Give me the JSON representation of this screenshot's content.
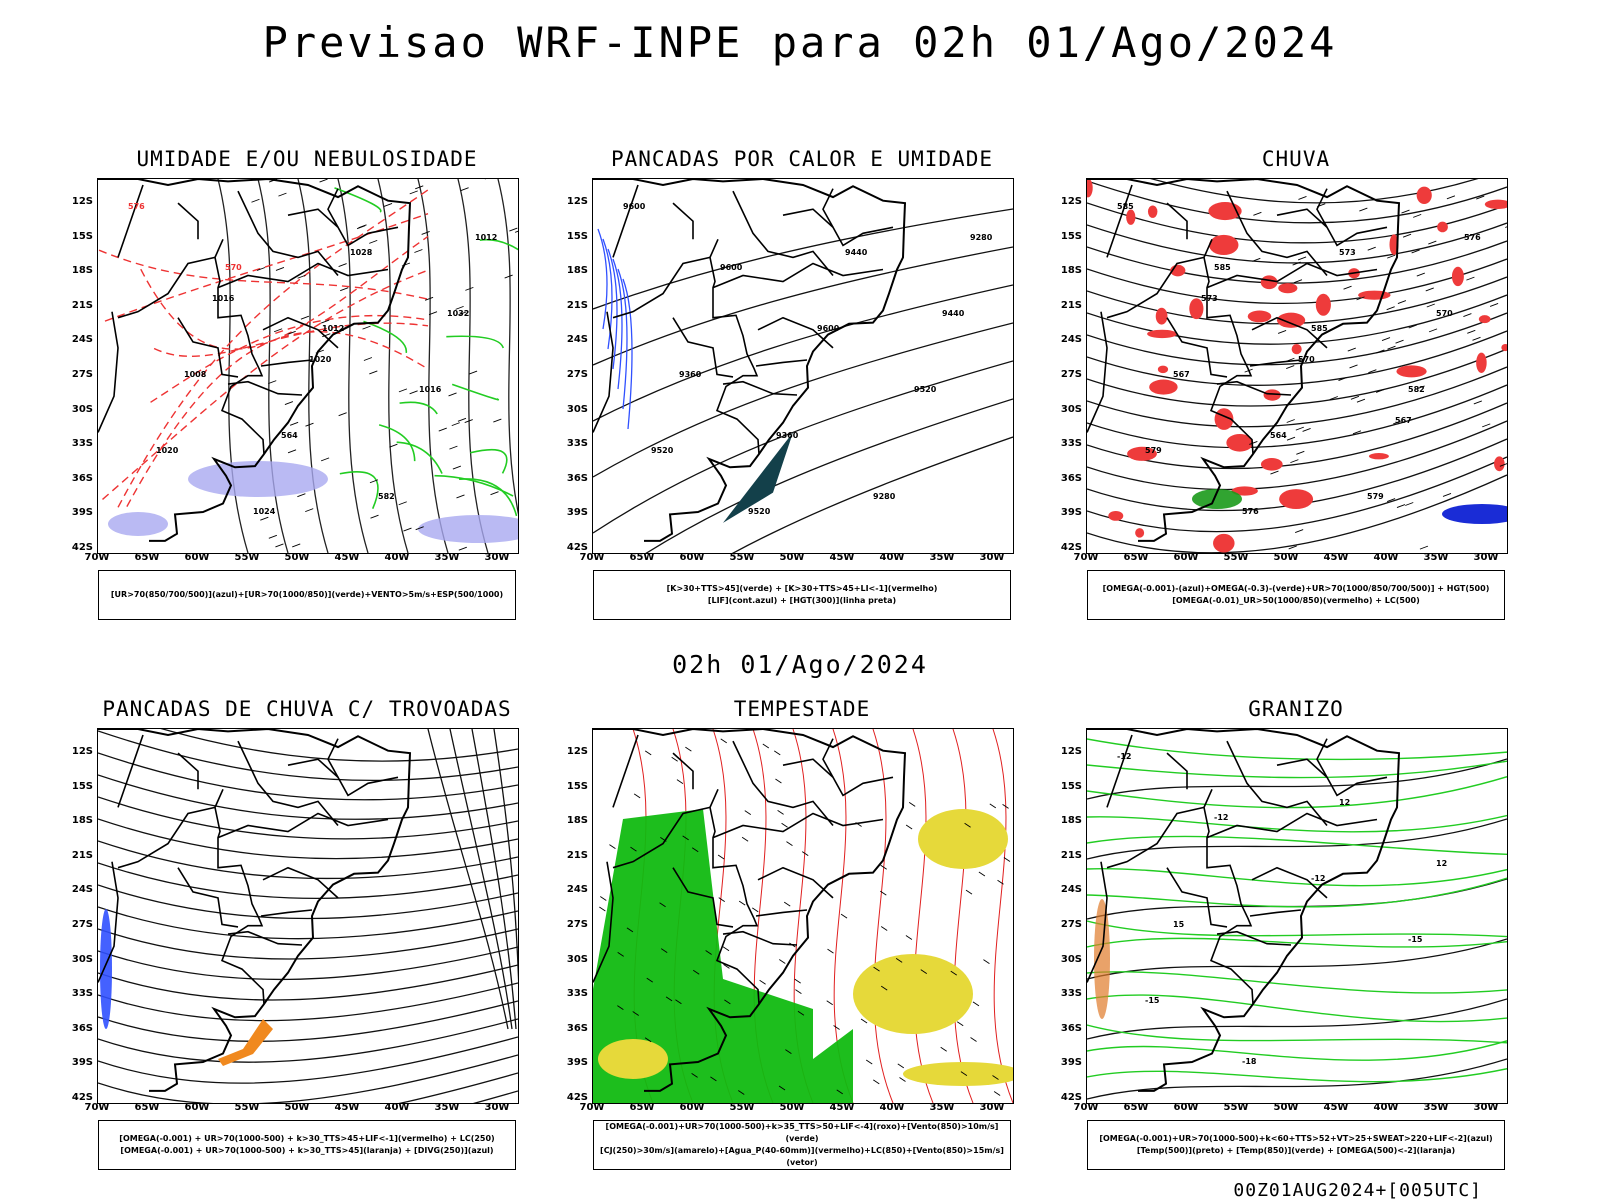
{
  "main_title": "Previsao WRF-INPE  para 02h 01/Ago/2024",
  "mid_date": "02h 01/Ago/2024",
  "footer": "00Z01AUG2024+[005UTC]",
  "lat_labels": [
    "12S",
    "15S",
    "18S",
    "21S",
    "24S",
    "27S",
    "30S",
    "33S",
    "36S",
    "39S",
    "42S"
  ],
  "lon_labels": [
    "70W",
    "65W",
    "60W",
    "55W",
    "50W",
    "45W",
    "40W",
    "35W",
    "30W"
  ],
  "panels": [
    {
      "title": "UMIDADE E/OU NEBULOSIDADE",
      "legend": [
        "[UR>70(850/700/500)](azul)+[UR>70(1000/850)](verde)+VENTO>5m/s+ESP(500/1000)"
      ],
      "contour_labels": [
        "576",
        "570",
        "1012",
        "1016",
        "1020",
        "1024",
        "1028",
        "1032",
        "1008",
        "564",
        "582",
        "1012",
        "1016",
        "1020"
      ]
    },
    {
      "title": "PANCADAS POR CALOR E UMIDADE",
      "legend": [
        "[K>30+TTS>45](verde) + [K>30+TTS>45+LI<-1](vermelho)",
        "[LIF](cont.azul) + [HGT(300)](linha preta)"
      ],
      "contour_labels": [
        "9600",
        "9600",
        "9600",
        "9520",
        "9520",
        "9520",
        "9440",
        "9440",
        "9360",
        "9360",
        "9280",
        "9280"
      ]
    },
    {
      "title": "CHUVA",
      "legend": [
        "[OMEGA(-0.001)-(azul)+OMEGA(-0.3)-(verde)+UR>70(1000/850/700/500)] + HGT(500)",
        "[OMEGA(-0.01)_UR>50(1000/850)(vermelho) + LC(500)"
      ],
      "contour_labels": [
        "585",
        "585",
        "585",
        "582",
        "579",
        "576",
        "573",
        "570",
        "567",
        "564",
        "579",
        "576",
        "573",
        "570",
        "567"
      ]
    },
    {
      "title": "PANCADAS DE CHUVA C/ TROVOADAS",
      "legend": [
        "[OMEGA(-0.001) + UR>70(1000-500) + k>30_TTS>45+LIF<-1](vermelho) + LC(250)",
        "[OMEGA(-0.001) + UR>70(1000-500) + k>30_TTS>45](laranja) + [DIVG(250)](azul)"
      ],
      "contour_labels": []
    },
    {
      "title": "TEMPESTADE",
      "legend": [
        "[OMEGA(-0.001)+UR>70(1000-500)+k>35_TTS>50+LIF<-4](roxo)+[Vento(850)>10m/s](verde)",
        "[CJ(250)>30m/s](amarelo)+[Agua_P(40-60mm)](vermelho)+LC(850)+[Vento(850)>15m/s](vetor)"
      ],
      "contour_labels": []
    },
    {
      "title": "GRANIZO",
      "legend": [
        "[OMEGA(-0.001)+UR>70(1000-500)+k<60+TTS>52+VT>25+SWEAT>220+LIF<-2](azul)",
        "[Temp(500)](preto) + [Temp(850)](verde) + [OMEGA(500)<-2](laranja)"
      ],
      "contour_labels": [
        "-12",
        "-12",
        "-12",
        "-15",
        "-15",
        "-18",
        "12",
        "12",
        "15"
      ]
    }
  ]
}
